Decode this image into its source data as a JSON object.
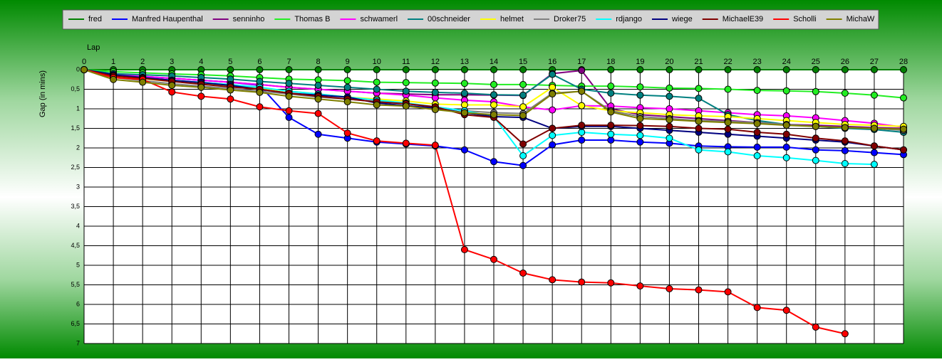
{
  "chart_data": {
    "type": "line",
    "x_label": "Lap",
    "y_label": "Gap (in mins)",
    "x": [
      0,
      1,
      2,
      3,
      4,
      5,
      6,
      7,
      8,
      9,
      10,
      11,
      12,
      13,
      14,
      15,
      16,
      17,
      18,
      19,
      20,
      21,
      22,
      23,
      24,
      25,
      26,
      27,
      28
    ],
    "xlim": [
      0,
      28
    ],
    "xticks": [
      0,
      1,
      2,
      3,
      4,
      5,
      6,
      7,
      8,
      9,
      10,
      11,
      12,
      13,
      14,
      15,
      16,
      17,
      18,
      19,
      20,
      21,
      22,
      23,
      24,
      25,
      26,
      27,
      28
    ],
    "ylim": [
      0,
      7
    ],
    "y_inverted": true,
    "grid": true,
    "yticks": [
      0,
      {
        "value": 0.5,
        "label": "0,5"
      },
      1,
      {
        "value": 1.5,
        "label": "1,5"
      },
      2,
      {
        "value": 2.5,
        "label": "2,5"
      },
      3,
      {
        "value": 3.5,
        "label": "3,5"
      },
      4,
      {
        "value": 4.5,
        "label": "4,5"
      },
      5,
      {
        "value": 5.5,
        "label": "5,5"
      },
      6,
      {
        "value": 6.5,
        "label": "6,5"
      },
      7
    ],
    "series": [
      {
        "name": "fred",
        "color": "#008000",
        "values": [
          0,
          0,
          0,
          0,
          0,
          0,
          0,
          0,
          0,
          0,
          0,
          0,
          0,
          0,
          0,
          0,
          0,
          0,
          0,
          0,
          0,
          0,
          0,
          0,
          0,
          0,
          0,
          0,
          0
        ]
      },
      {
        "name": "Manfred Haupenthal",
        "color": "#0000ff",
        "values": [
          0,
          0.12,
          0.17,
          0.22,
          0.27,
          0.32,
          0.4,
          1.22,
          1.65,
          1.75,
          1.85,
          1.9,
          1.95,
          2.05,
          2.35,
          2.45,
          1.92,
          1.8,
          1.8,
          1.85,
          1.88,
          1.95,
          1.97,
          1.98,
          1.98,
          2.05,
          2.07,
          2.12,
          2.17
        ]
      },
      {
        "name": "senninho",
        "color": "#800080",
        "values": [
          0,
          0.13,
          0.18,
          0.22,
          0.27,
          0.32,
          0.38,
          0.45,
          0.5,
          0.55,
          0.6,
          0.62,
          0.64,
          0.64,
          0.65,
          0.66,
          0.1,
          0.02,
          1.0,
          1.15,
          1.2,
          1.25,
          1.3,
          1.35,
          1.4,
          1.42,
          1.45,
          1.48,
          1.5
        ]
      },
      {
        "name": "Thomas B",
        "color": "#22ee22",
        "values": [
          0,
          0.05,
          0.08,
          0.11,
          0.13,
          0.16,
          0.2,
          0.24,
          0.26,
          0.28,
          0.32,
          0.33,
          0.34,
          0.35,
          0.38,
          0.38,
          0.4,
          0.42,
          0.42,
          0.44,
          0.47,
          0.48,
          0.5,
          0.53,
          0.54,
          0.56,
          0.6,
          0.65,
          0.72
        ]
      },
      {
        "name": "schwamerl",
        "color": "#ff00ff",
        "values": [
          0,
          0.12,
          0.17,
          0.22,
          0.27,
          0.32,
          0.38,
          0.45,
          0.5,
          0.55,
          0.6,
          0.65,
          0.72,
          0.78,
          0.82,
          0.95,
          1.03,
          0.92,
          0.93,
          0.97,
          1.0,
          1.05,
          1.1,
          1.15,
          1.18,
          1.23,
          1.3,
          1.37,
          1.47
        ]
      },
      {
        "name": "00schneider",
        "color": "#008080",
        "values": [
          0,
          0.1,
          0.13,
          0.16,
          0.2,
          0.24,
          0.3,
          0.35,
          0.4,
          0.45,
          0.5,
          0.55,
          0.58,
          0.6,
          0.64,
          0.65,
          0.12,
          0.5,
          0.6,
          0.65,
          0.68,
          0.73,
          1.15,
          1.3,
          1.4,
          1.45,
          1.5,
          1.53,
          1.6
        ]
      },
      {
        "name": "helmet",
        "color": "#ffff00",
        "values": [
          0,
          0.18,
          0.23,
          0.3,
          0.35,
          0.42,
          0.48,
          0.55,
          0.62,
          0.7,
          0.75,
          0.8,
          0.88,
          0.9,
          0.9,
          0.95,
          0.45,
          0.92,
          1.05,
          1.1,
          1.15,
          1.18,
          1.2,
          1.25,
          1.3,
          1.35,
          1.4,
          1.42,
          1.45
        ]
      },
      {
        "name": "Droker75",
        "color": "#808080",
        "values": [
          0,
          0.2,
          0.28,
          0.36,
          0.42,
          0.48,
          0.55,
          0.62,
          0.7,
          0.75,
          0.82,
          0.87,
          0.95,
          1.05,
          1.1,
          1.12,
          0.6,
          0.55,
          1.05,
          1.2,
          1.25,
          1.3,
          1.32,
          1.35,
          1.4,
          1.45,
          1.48,
          1.5,
          1.55
        ]
      },
      {
        "name": "rdjango",
        "color": "#00ffff",
        "values": [
          0,
          0.15,
          0.2,
          0.27,
          0.32,
          0.38,
          0.45,
          0.55,
          0.62,
          0.7,
          0.78,
          0.85,
          0.95,
          1.05,
          1.2,
          2.2,
          1.68,
          1.6,
          1.65,
          1.68,
          1.75,
          2.05,
          2.1,
          2.2,
          2.25,
          2.32,
          2.4,
          2.42,
          null
        ]
      },
      {
        "name": "wiege",
        "color": "#000080",
        "values": [
          0,
          0.13,
          0.2,
          0.27,
          0.33,
          0.4,
          0.5,
          0.6,
          0.65,
          0.7,
          0.85,
          0.92,
          0.98,
          1.1,
          1.2,
          1.22,
          1.5,
          1.45,
          1.45,
          1.5,
          1.55,
          1.6,
          1.65,
          1.7,
          1.75,
          1.8,
          1.85,
          1.95,
          2.05
        ]
      },
      {
        "name": "MichaelE39",
        "color": "#800000",
        "values": [
          0,
          0.16,
          0.22,
          0.3,
          0.37,
          0.44,
          0.5,
          0.6,
          0.68,
          0.75,
          0.82,
          0.87,
          0.95,
          1.15,
          1.22,
          1.9,
          1.5,
          1.42,
          1.42,
          1.43,
          1.45,
          1.5,
          1.52,
          1.6,
          1.65,
          1.75,
          1.82,
          1.95,
          2.05
        ]
      },
      {
        "name": "Scholli",
        "color": "#ff0000",
        "values": [
          0,
          0.2,
          0.25,
          0.57,
          0.68,
          0.75,
          0.95,
          1.05,
          1.12,
          1.62,
          1.82,
          1.88,
          1.93,
          4.6,
          4.85,
          5.2,
          5.37,
          5.43,
          5.45,
          5.53,
          5.6,
          5.63,
          5.68,
          6.08,
          6.15,
          6.58,
          6.75,
          null,
          null
        ]
      },
      {
        "name": "MichaW",
        "color": "#808000",
        "values": [
          0,
          0.25,
          0.32,
          0.4,
          0.45,
          0.52,
          0.58,
          0.68,
          0.75,
          0.82,
          0.9,
          0.93,
          1.02,
          1.1,
          1.15,
          1.17,
          0.62,
          0.55,
          1.08,
          1.25,
          1.28,
          1.32,
          1.35,
          1.38,
          1.42,
          1.45,
          1.48,
          1.5,
          1.52
        ]
      }
    ]
  }
}
